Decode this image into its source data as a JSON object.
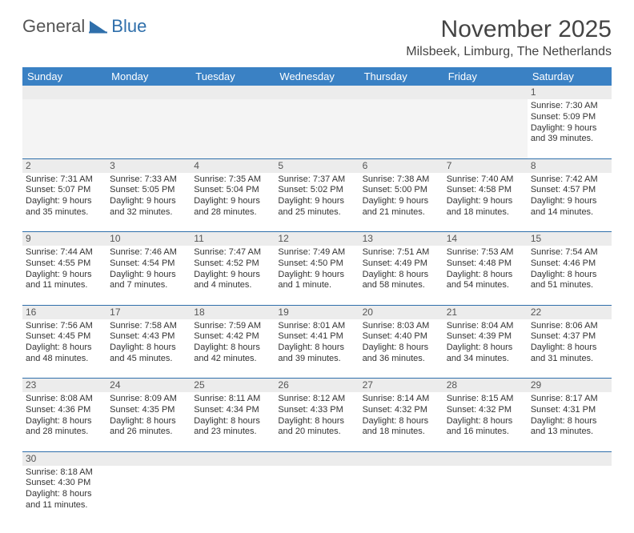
{
  "logo": {
    "part1": "General",
    "part2": "Blue"
  },
  "title": "November 2025",
  "location": "Milsbeek, Limburg, The Netherlands",
  "header_bg": "#3a81c4",
  "header_fg": "#ffffff",
  "rule_color": "#2f6fab",
  "days": [
    "Sunday",
    "Monday",
    "Tuesday",
    "Wednesday",
    "Thursday",
    "Friday",
    "Saturday"
  ],
  "weeks": [
    [
      null,
      null,
      null,
      null,
      null,
      null,
      {
        "n": "1",
        "sr": "Sunrise: 7:30 AM",
        "ss": "Sunset: 5:09 PM",
        "d1": "Daylight: 9 hours",
        "d2": "and 39 minutes."
      }
    ],
    [
      {
        "n": "2",
        "sr": "Sunrise: 7:31 AM",
        "ss": "Sunset: 5:07 PM",
        "d1": "Daylight: 9 hours",
        "d2": "and 35 minutes."
      },
      {
        "n": "3",
        "sr": "Sunrise: 7:33 AM",
        "ss": "Sunset: 5:05 PM",
        "d1": "Daylight: 9 hours",
        "d2": "and 32 minutes."
      },
      {
        "n": "4",
        "sr": "Sunrise: 7:35 AM",
        "ss": "Sunset: 5:04 PM",
        "d1": "Daylight: 9 hours",
        "d2": "and 28 minutes."
      },
      {
        "n": "5",
        "sr": "Sunrise: 7:37 AM",
        "ss": "Sunset: 5:02 PM",
        "d1": "Daylight: 9 hours",
        "d2": "and 25 minutes."
      },
      {
        "n": "6",
        "sr": "Sunrise: 7:38 AM",
        "ss": "Sunset: 5:00 PM",
        "d1": "Daylight: 9 hours",
        "d2": "and 21 minutes."
      },
      {
        "n": "7",
        "sr": "Sunrise: 7:40 AM",
        "ss": "Sunset: 4:58 PM",
        "d1": "Daylight: 9 hours",
        "d2": "and 18 minutes."
      },
      {
        "n": "8",
        "sr": "Sunrise: 7:42 AM",
        "ss": "Sunset: 4:57 PM",
        "d1": "Daylight: 9 hours",
        "d2": "and 14 minutes."
      }
    ],
    [
      {
        "n": "9",
        "sr": "Sunrise: 7:44 AM",
        "ss": "Sunset: 4:55 PM",
        "d1": "Daylight: 9 hours",
        "d2": "and 11 minutes."
      },
      {
        "n": "10",
        "sr": "Sunrise: 7:46 AM",
        "ss": "Sunset: 4:54 PM",
        "d1": "Daylight: 9 hours",
        "d2": "and 7 minutes."
      },
      {
        "n": "11",
        "sr": "Sunrise: 7:47 AM",
        "ss": "Sunset: 4:52 PM",
        "d1": "Daylight: 9 hours",
        "d2": "and 4 minutes."
      },
      {
        "n": "12",
        "sr": "Sunrise: 7:49 AM",
        "ss": "Sunset: 4:50 PM",
        "d1": "Daylight: 9 hours",
        "d2": "and 1 minute."
      },
      {
        "n": "13",
        "sr": "Sunrise: 7:51 AM",
        "ss": "Sunset: 4:49 PM",
        "d1": "Daylight: 8 hours",
        "d2": "and 58 minutes."
      },
      {
        "n": "14",
        "sr": "Sunrise: 7:53 AM",
        "ss": "Sunset: 4:48 PM",
        "d1": "Daylight: 8 hours",
        "d2": "and 54 minutes."
      },
      {
        "n": "15",
        "sr": "Sunrise: 7:54 AM",
        "ss": "Sunset: 4:46 PM",
        "d1": "Daylight: 8 hours",
        "d2": "and 51 minutes."
      }
    ],
    [
      {
        "n": "16",
        "sr": "Sunrise: 7:56 AM",
        "ss": "Sunset: 4:45 PM",
        "d1": "Daylight: 8 hours",
        "d2": "and 48 minutes."
      },
      {
        "n": "17",
        "sr": "Sunrise: 7:58 AM",
        "ss": "Sunset: 4:43 PM",
        "d1": "Daylight: 8 hours",
        "d2": "and 45 minutes."
      },
      {
        "n": "18",
        "sr": "Sunrise: 7:59 AM",
        "ss": "Sunset: 4:42 PM",
        "d1": "Daylight: 8 hours",
        "d2": "and 42 minutes."
      },
      {
        "n": "19",
        "sr": "Sunrise: 8:01 AM",
        "ss": "Sunset: 4:41 PM",
        "d1": "Daylight: 8 hours",
        "d2": "and 39 minutes."
      },
      {
        "n": "20",
        "sr": "Sunrise: 8:03 AM",
        "ss": "Sunset: 4:40 PM",
        "d1": "Daylight: 8 hours",
        "d2": "and 36 minutes."
      },
      {
        "n": "21",
        "sr": "Sunrise: 8:04 AM",
        "ss": "Sunset: 4:39 PM",
        "d1": "Daylight: 8 hours",
        "d2": "and 34 minutes."
      },
      {
        "n": "22",
        "sr": "Sunrise: 8:06 AM",
        "ss": "Sunset: 4:37 PM",
        "d1": "Daylight: 8 hours",
        "d2": "and 31 minutes."
      }
    ],
    [
      {
        "n": "23",
        "sr": "Sunrise: 8:08 AM",
        "ss": "Sunset: 4:36 PM",
        "d1": "Daylight: 8 hours",
        "d2": "and 28 minutes."
      },
      {
        "n": "24",
        "sr": "Sunrise: 8:09 AM",
        "ss": "Sunset: 4:35 PM",
        "d1": "Daylight: 8 hours",
        "d2": "and 26 minutes."
      },
      {
        "n": "25",
        "sr": "Sunrise: 8:11 AM",
        "ss": "Sunset: 4:34 PM",
        "d1": "Daylight: 8 hours",
        "d2": "and 23 minutes."
      },
      {
        "n": "26",
        "sr": "Sunrise: 8:12 AM",
        "ss": "Sunset: 4:33 PM",
        "d1": "Daylight: 8 hours",
        "d2": "and 20 minutes."
      },
      {
        "n": "27",
        "sr": "Sunrise: 8:14 AM",
        "ss": "Sunset: 4:32 PM",
        "d1": "Daylight: 8 hours",
        "d2": "and 18 minutes."
      },
      {
        "n": "28",
        "sr": "Sunrise: 8:15 AM",
        "ss": "Sunset: 4:32 PM",
        "d1": "Daylight: 8 hours",
        "d2": "and 16 minutes."
      },
      {
        "n": "29",
        "sr": "Sunrise: 8:17 AM",
        "ss": "Sunset: 4:31 PM",
        "d1": "Daylight: 8 hours",
        "d2": "and 13 minutes."
      }
    ],
    [
      {
        "n": "30",
        "sr": "Sunrise: 8:18 AM",
        "ss": "Sunset: 4:30 PM",
        "d1": "Daylight: 8 hours",
        "d2": "and 11 minutes."
      },
      null,
      null,
      null,
      null,
      null,
      null
    ]
  ]
}
